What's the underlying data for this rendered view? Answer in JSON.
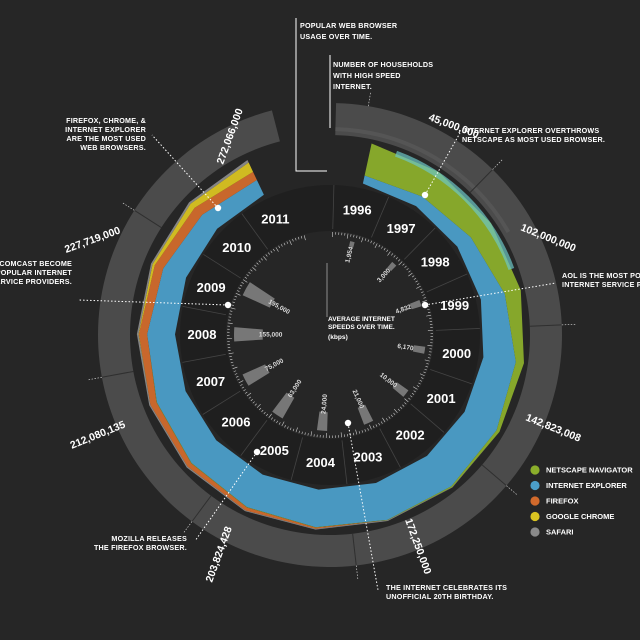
{
  "chart_data": {
    "type": "radial-area",
    "title": "POPULAR WEB BROWSER USAGE OVER TIME.",
    "subtitle": "NUMBER OF HOUSEHOLDS WITH HIGH SPEED INTERNET.",
    "center_label": "AVERAGE INTERNET SPEEDS OVER TIME.",
    "center_unit": "(kbps)",
    "years": [
      "1996",
      "1997",
      "1998",
      "1999",
      "2000",
      "2001",
      "2002",
      "2003",
      "2004",
      "2005",
      "2006",
      "2007",
      "2008",
      "2009",
      "2010",
      "2011"
    ],
    "series": [
      {
        "name": "NETSCAPE NAVIGATOR",
        "color": "#8bae2b",
        "values": [
          80,
          72,
          60,
          40,
          20,
          8,
          3,
          1,
          1,
          1,
          1,
          1,
          0,
          0,
          0,
          0
        ]
      },
      {
        "name": "INTERNET EXPLORER",
        "color": "#4b9ec9",
        "values": [
          20,
          28,
          40,
          60,
          80,
          90,
          95,
          94,
          92,
          88,
          82,
          75,
          68,
          60,
          50,
          40
        ]
      },
      {
        "name": "FIREFOX",
        "color": "#d16a2c",
        "values": [
          0,
          0,
          0,
          0,
          0,
          0,
          0,
          0,
          3,
          8,
          12,
          16,
          20,
          22,
          25,
          22
        ]
      },
      {
        "name": "GOOGLE CHROME",
        "color": "#d9c321",
        "values": [
          0,
          0,
          0,
          0,
          0,
          0,
          0,
          0,
          0,
          0,
          0,
          0,
          1,
          6,
          14,
          25
        ]
      },
      {
        "name": "SAFARI",
        "color": "#8a8a8a",
        "values": [
          0,
          0,
          0,
          0,
          0,
          0,
          1,
          2,
          2,
          2,
          3,
          3,
          4,
          4,
          5,
          7
        ]
      }
    ],
    "households": [
      {
        "label": "45,000,000"
      },
      {
        "label": "102,000,000"
      },
      {
        "label": "142,823,008"
      },
      {
        "label": "172,250,000"
      },
      {
        "label": "203,824,428"
      },
      {
        "label": "212,080,135"
      },
      {
        "label": "227,719,000"
      },
      {
        "label": "272,066,000"
      }
    ],
    "speeds": [
      {
        "label": "1,954",
        "value": 1954
      },
      {
        "label": "3,000",
        "value": 3000
      },
      {
        "label": "4,832",
        "value": 4832
      },
      {
        "label": "6,170",
        "value": 6170
      },
      {
        "label": "10,000",
        "value": 10000
      },
      {
        "label": "21,000",
        "value": 21000
      },
      {
        "label": "24,000",
        "value": 24000
      },
      {
        "label": "63,000",
        "value": 63000
      },
      {
        "label": "75,000",
        "value": 75000
      },
      {
        "label": "155,000",
        "value": 155000
      },
      {
        "label": "195,000",
        "value": 195000
      }
    ],
    "annotations": [
      {
        "lines": [
          "INTERNET EXPLORER OVERTHROWS",
          "NETSCAPE AS MOST USED BROWSER."
        ]
      },
      {
        "lines": [
          "AOL IS THE MOST POPULAR",
          "INTERNET SERVICE PROVIDER."
        ]
      },
      {
        "lines": [
          "THE INTERNET CELEBRATES ITS",
          "UNOFFICIAL 20TH BIRTHDAY."
        ]
      },
      {
        "lines": [
          "MOZILLA RELEASES",
          "THE FIREFOX BROWSER."
        ]
      },
      {
        "lines": [
          "AT&T AND COMCAST BECOME",
          "THE MOST POPULAR INTERNET",
          "SERVICE PROVIDERS."
        ]
      },
      {
        "lines": [
          "FIREFOX, CHROME, &",
          "INTERNET EXPLORER",
          "ARE THE MOST USED",
          "WEB BROWSERS."
        ]
      }
    ]
  }
}
